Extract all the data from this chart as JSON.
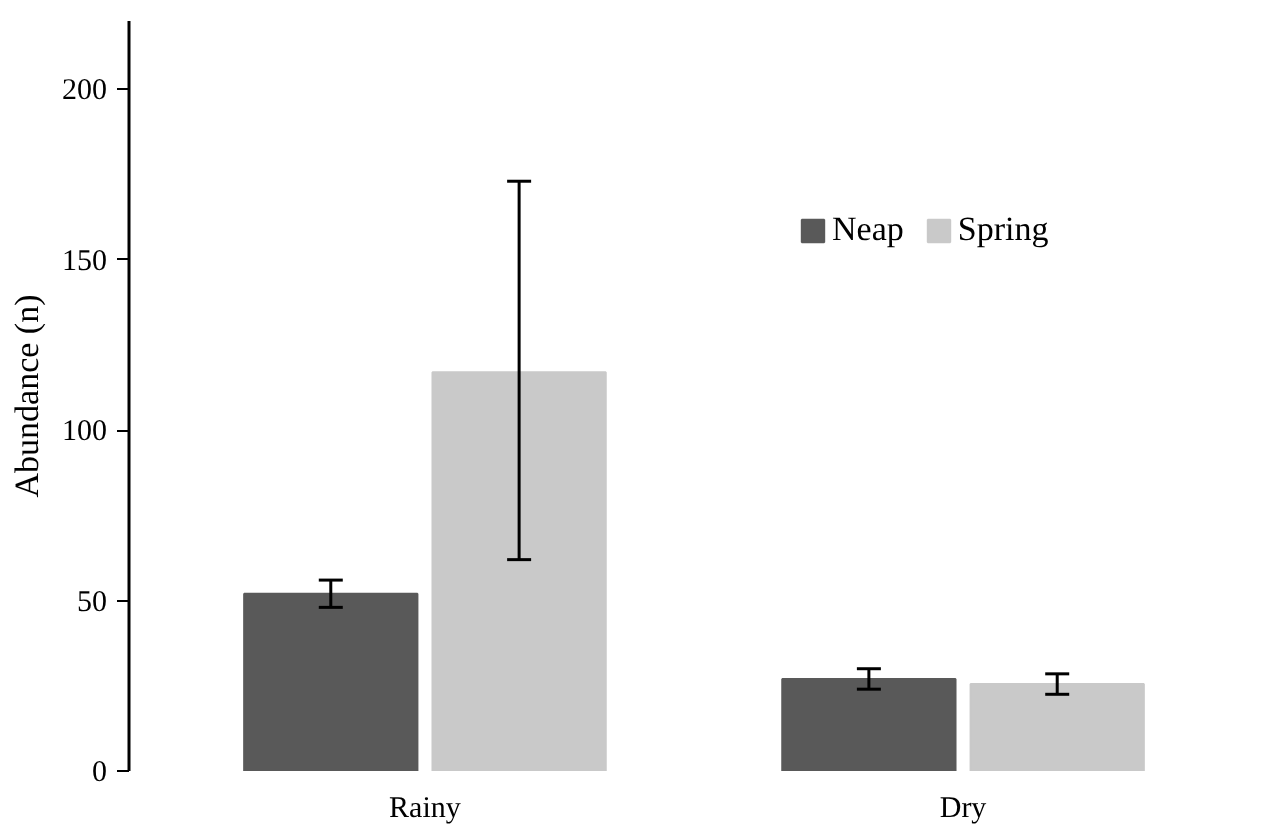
{
  "chart_data": {
    "type": "bar",
    "ylabel": "Abundance (n)",
    "categories": [
      "Rainy",
      "Dry"
    ],
    "series": [
      {
        "name": "Neap",
        "color": "#595959",
        "values": [
          52,
          27
        ],
        "errors": [
          4,
          3
        ]
      },
      {
        "name": "Spring",
        "color": "#c9c9c9",
        "values": [
          117,
          25.5
        ],
        "errors": [
          [
            62,
            173
          ],
          3
        ]
      }
    ],
    "ylim": [
      0,
      220
    ],
    "yticks": [
      0,
      50,
      100,
      150,
      200
    ],
    "grid": false,
    "legend": "right"
  }
}
